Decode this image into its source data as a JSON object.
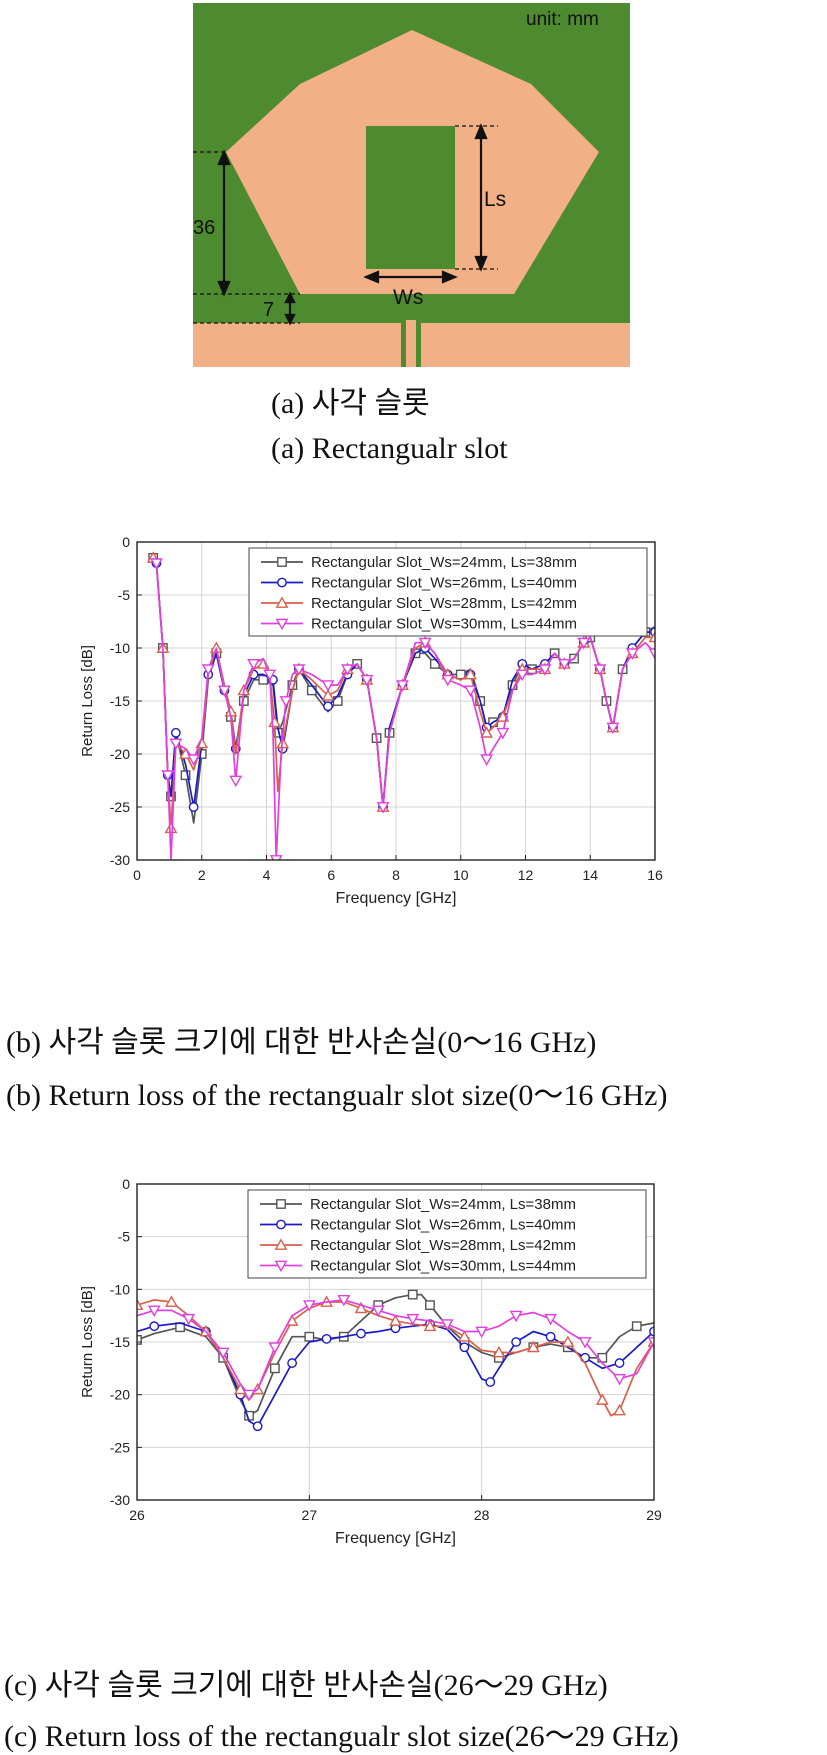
{
  "figure_a": {
    "unit_label": "unit: mm",
    "dim_36": "36",
    "dim_7": "7",
    "dim_ls": "Ls",
    "dim_ws": "Ws",
    "caption_kr": "(a) 사각 슬롯",
    "caption_en": "(a) Rectangualr slot",
    "colors": {
      "substrate": "#4e8a2f",
      "copper": "#f2b087"
    }
  },
  "captions": {
    "b_kr": "(b) 사각 슬롯 크기에 대한 반사손실(0～16 GHz)",
    "b_en": "(b) Return loss of the rectangualr slot size(0～16 GHz)",
    "c_kr": "(c) 사각 슬롯 크기에 대한 반사손실(26～29 GHz)",
    "c_en": "(c) Return loss of the rectangualr slot size(26～29 GHz)"
  },
  "chart_data": [
    {
      "type": "line",
      "xlabel": "Frequency [GHz]",
      "ylabel": "Return Loss [dB]",
      "xlim": [
        0,
        16
      ],
      "ylim": [
        -30,
        0
      ],
      "xticks": [
        0,
        2,
        4,
        6,
        8,
        10,
        12,
        14,
        16
      ],
      "yticks": [
        0,
        -5,
        -10,
        -15,
        -20,
        -25,
        -30
      ],
      "grid": true,
      "legend_position": "top-right",
      "series": [
        {
          "name": "Rectangular Slot_Ws=24mm, Ls=38mm",
          "color": "#555555",
          "marker": "square",
          "x": [
            0.5,
            0.6,
            0.8,
            0.95,
            1.05,
            1.2,
            1.5,
            1.75,
            2.0,
            2.2,
            2.45,
            2.7,
            2.9,
            3.05,
            3.3,
            3.6,
            3.9,
            4.2,
            4.35,
            4.5,
            4.8,
            5.0,
            5.4,
            5.9,
            6.2,
            6.5,
            6.8,
            7.1,
            7.4,
            7.6,
            7.8,
            8.2,
            8.6,
            8.9,
            9.2,
            9.6,
            10.0,
            10.3,
            10.6,
            10.8,
            11.0,
            11.3,
            11.6,
            11.9,
            12.2,
            12.6,
            12.9,
            13.2,
            13.5,
            13.8,
            14.0,
            14.3,
            14.5,
            14.7,
            15.0,
            15.3,
            15.7,
            16.0
          ],
          "y": [
            -1.5,
            -2,
            -10,
            -22,
            -24,
            -18,
            -22,
            -26.5,
            -20,
            -13,
            -10.5,
            -14,
            -16.5,
            -19.5,
            -15,
            -13,
            -13,
            -13.5,
            -18,
            -17,
            -13.5,
            -12,
            -14,
            -16,
            -15,
            -12.5,
            -11.5,
            -13,
            -18.5,
            -25,
            -18,
            -13.5,
            -10.5,
            -10.5,
            -11.5,
            -12.5,
            -12.5,
            -12,
            -15,
            -17.5,
            -17,
            -16.5,
            -13.5,
            -11.5,
            -12,
            -11.5,
            -10.5,
            -11.5,
            -11,
            -9.5,
            -9,
            -12,
            -15,
            -17.5,
            -12,
            -10,
            -8.5,
            -8
          ]
        },
        {
          "name": "Rectangular Slot_Ws=26mm, Ls=40mm",
          "color": "#1a1ac8",
          "marker": "circle",
          "x": [
            0.5,
            0.6,
            0.8,
            0.95,
            1.05,
            1.2,
            1.5,
            1.75,
            2.0,
            2.2,
            2.45,
            2.7,
            2.9,
            3.05,
            3.3,
            3.6,
            3.9,
            4.2,
            4.35,
            4.5,
            4.8,
            5.0,
            5.4,
            5.9,
            6.2,
            6.5,
            6.8,
            7.1,
            7.4,
            7.6,
            7.8,
            8.2,
            8.6,
            8.9,
            9.2,
            9.6,
            10.0,
            10.3,
            10.6,
            10.8,
            11.0,
            11.3,
            11.6,
            11.9,
            12.2,
            12.6,
            12.9,
            13.2,
            13.5,
            13.8,
            14.0,
            14.3,
            14.5,
            14.7,
            15.0,
            15.3,
            15.7,
            16.0
          ],
          "y": [
            -1.5,
            -2,
            -10,
            -22,
            -24,
            -18,
            -21,
            -25,
            -19,
            -12.5,
            -10.5,
            -14,
            -16,
            -19.5,
            -14.5,
            -12.5,
            -12.5,
            -13,
            -17.5,
            -19.5,
            -14,
            -12,
            -13.5,
            -15.5,
            -14.5,
            -12.5,
            -11.5,
            -13,
            -18.5,
            -25,
            -17.5,
            -13.5,
            -10.5,
            -10,
            -11,
            -12.5,
            -13,
            -12.5,
            -15,
            -17.5,
            -17,
            -16.5,
            -13,
            -11.5,
            -12,
            -11.5,
            -10.5,
            -11.5,
            -11,
            -9.5,
            -9,
            -12,
            -15,
            -17.5,
            -12,
            -10,
            -8.5,
            -8.5
          ]
        },
        {
          "name": "Rectangular Slot_Ws=28mm, Ls=42mm",
          "color": "#d9604a",
          "marker": "triangle-up",
          "x": [
            0.5,
            0.6,
            0.8,
            0.95,
            1.05,
            1.2,
            1.5,
            1.75,
            2.0,
            2.2,
            2.45,
            2.7,
            2.9,
            3.05,
            3.3,
            3.6,
            3.9,
            4.1,
            4.25,
            4.35,
            4.5,
            4.8,
            5.0,
            5.4,
            5.9,
            6.2,
            6.5,
            6.8,
            7.1,
            7.4,
            7.6,
            7.8,
            8.2,
            8.6,
            8.9,
            9.2,
            9.6,
            10.0,
            10.3,
            10.6,
            10.8,
            11.0,
            11.3,
            11.6,
            11.9,
            12.2,
            12.6,
            12.9,
            13.2,
            13.5,
            13.8,
            14.0,
            14.3,
            14.5,
            14.7,
            15.0,
            15.3,
            15.7,
            16.0
          ],
          "y": [
            -1.5,
            -2,
            -10,
            -22,
            -27,
            -19,
            -20,
            -21.5,
            -19,
            -12.5,
            -10,
            -13.5,
            -16,
            -20,
            -14,
            -12,
            -11.5,
            -12.5,
            -17,
            -23.5,
            -19,
            -14,
            -12,
            -13,
            -14.5,
            -14,
            -12,
            -11.5,
            -13,
            -18.5,
            -25,
            -18,
            -13.5,
            -10,
            -9.5,
            -10.5,
            -12.5,
            -13,
            -12.5,
            -16,
            -18,
            -17.5,
            -16.5,
            -14,
            -12,
            -12,
            -12,
            -10.5,
            -11.5,
            -11,
            -9.5,
            -9,
            -12,
            -15,
            -17.5,
            -12,
            -10.5,
            -9,
            -9
          ]
        },
        {
          "name": "Rectangular Slot_Ws=30mm, Ls=44mm",
          "color": "#e040e0",
          "marker": "triangle-down",
          "x": [
            0.5,
            0.6,
            0.8,
            0.95,
            1.05,
            1.2,
            1.5,
            1.75,
            2.0,
            2.2,
            2.45,
            2.7,
            2.9,
            3.05,
            3.3,
            3.6,
            3.9,
            4.1,
            4.2,
            4.3,
            4.45,
            4.6,
            4.8,
            5.0,
            5.4,
            5.9,
            6.2,
            6.5,
            6.8,
            7.1,
            7.4,
            7.6,
            7.8,
            8.2,
            8.6,
            8.9,
            9.2,
            9.6,
            10.0,
            10.3,
            10.6,
            10.8,
            11.0,
            11.3,
            11.6,
            11.9,
            12.2,
            12.6,
            12.9,
            13.2,
            13.5,
            13.8,
            14.0,
            14.3,
            14.5,
            14.7,
            15.0,
            15.3,
            15.7,
            16.0
          ],
          "y": [
            -1.5,
            -2,
            -10,
            -22,
            -30,
            -19,
            -19.5,
            -20.5,
            -18.5,
            -12,
            -10,
            -14,
            -16.5,
            -22.5,
            -14,
            -11.5,
            -11,
            -12.5,
            -18,
            -30,
            -20,
            -15,
            -12.5,
            -12,
            -12.5,
            -13.5,
            -13.5,
            -12,
            -11.5,
            -13,
            -18.5,
            -25,
            -18,
            -13.5,
            -9.5,
            -9.5,
            -10.5,
            -13,
            -13.5,
            -14,
            -17.5,
            -20.5,
            -19.5,
            -18,
            -14,
            -12.5,
            -12.5,
            -12,
            -10.5,
            -11.5,
            -11,
            -9.5,
            -9,
            -12,
            -15,
            -17.5,
            -12,
            -10.5,
            -9.5,
            -10.5
          ]
        }
      ]
    },
    {
      "type": "line",
      "xlabel": "Frequency [GHz]",
      "ylabel": "Return Loss [dB]",
      "xlim": [
        26,
        29
      ],
      "ylim": [
        -30,
        0
      ],
      "xticks": [
        26,
        27,
        28,
        29
      ],
      "yticks": [
        0,
        -5,
        -10,
        -15,
        -20,
        -25,
        -30
      ],
      "grid": true,
      "legend_position": "top-right",
      "series": [
        {
          "name": "Rectangular Slot_Ws=24mm, Ls=38mm",
          "color": "#555555",
          "marker": "square",
          "x": [
            26.0,
            26.1,
            26.25,
            26.4,
            26.5,
            26.6,
            26.65,
            26.7,
            26.8,
            26.9,
            27.0,
            27.1,
            27.2,
            27.3,
            27.4,
            27.5,
            27.6,
            27.65,
            27.7,
            27.8,
            27.9,
            28.0,
            28.1,
            28.2,
            28.3,
            28.4,
            28.5,
            28.6,
            28.7,
            28.8,
            28.9,
            29.0
          ],
          "y": [
            -14.8,
            -14.2,
            -13.6,
            -14.5,
            -16.5,
            -20.5,
            -22,
            -21.5,
            -17.5,
            -14.5,
            -14.5,
            -14.8,
            -14.5,
            -13,
            -11.5,
            -10.8,
            -10.5,
            -10.5,
            -11.5,
            -13.5,
            -15,
            -16,
            -16.5,
            -16,
            -15.5,
            -15.2,
            -15.5,
            -16.5,
            -16.5,
            -14.5,
            -13.5,
            -13.2
          ]
        },
        {
          "name": "Rectangular Slot_Ws=26mm, Ls=40mm",
          "color": "#1a1ac8",
          "marker": "circle",
          "x": [
            26.0,
            26.1,
            26.25,
            26.4,
            26.5,
            26.6,
            26.65,
            26.7,
            26.8,
            26.9,
            27.0,
            27.1,
            27.2,
            27.3,
            27.4,
            27.5,
            27.6,
            27.7,
            27.8,
            27.9,
            28.0,
            28.05,
            28.1,
            28.2,
            28.3,
            28.4,
            28.5,
            28.6,
            28.7,
            28.8,
            28.9,
            29.0
          ],
          "y": [
            -14,
            -13.5,
            -13.2,
            -14,
            -16.5,
            -20,
            -22.5,
            -23,
            -20,
            -17,
            -15,
            -14.7,
            -14.5,
            -14.2,
            -14,
            -13.7,
            -13.5,
            -13.3,
            -13.8,
            -15.5,
            -18.5,
            -18.8,
            -17.5,
            -15,
            -14,
            -14.5,
            -15.5,
            -16.5,
            -17.5,
            -17,
            -15.5,
            -14
          ]
        },
        {
          "name": "Rectangular Slot_Ws=28mm, Ls=42mm",
          "color": "#d9604a",
          "marker": "triangle-up",
          "x": [
            26.0,
            26.1,
            26.2,
            26.3,
            26.4,
            26.5,
            26.6,
            26.65,
            26.7,
            26.8,
            26.9,
            27.0,
            27.1,
            27.2,
            27.3,
            27.4,
            27.5,
            27.6,
            27.7,
            27.8,
            27.9,
            28.0,
            28.1,
            28.2,
            28.3,
            28.4,
            28.5,
            28.6,
            28.7,
            28.75,
            28.8,
            28.9,
            29.0
          ],
          "y": [
            -11.5,
            -11,
            -11.2,
            -12.5,
            -14,
            -16.5,
            -19.5,
            -20.5,
            -19.5,
            -16,
            -13,
            -11.8,
            -11.2,
            -11.2,
            -11.8,
            -12.5,
            -13,
            -13.3,
            -13.5,
            -13.5,
            -14.5,
            -15.8,
            -16,
            -16,
            -15.5,
            -15,
            -15,
            -17,
            -20.5,
            -22,
            -21.5,
            -17.5,
            -15
          ]
        },
        {
          "name": "Rectangular Slot_Ws=30mm, Ls=44mm",
          "color": "#e040e0",
          "marker": "triangle-down",
          "x": [
            26.0,
            26.1,
            26.2,
            26.3,
            26.4,
            26.5,
            26.6,
            26.65,
            26.7,
            26.8,
            26.9,
            27.0,
            27.1,
            27.2,
            27.3,
            27.4,
            27.5,
            27.6,
            27.7,
            27.8,
            27.9,
            28.0,
            28.1,
            28.2,
            28.3,
            28.4,
            28.5,
            28.6,
            28.7,
            28.8,
            28.9,
            29.0
          ],
          "y": [
            -12.5,
            -12,
            -12,
            -12.8,
            -14,
            -16,
            -19,
            -20,
            -19.5,
            -15.5,
            -12.5,
            -11.5,
            -11.2,
            -11,
            -11.5,
            -12,
            -12.5,
            -12.8,
            -13,
            -13.3,
            -14,
            -14,
            -13.5,
            -12.5,
            -12.2,
            -12.8,
            -14,
            -15,
            -17,
            -18.5,
            -18,
            -15
          ]
        }
      ]
    }
  ]
}
